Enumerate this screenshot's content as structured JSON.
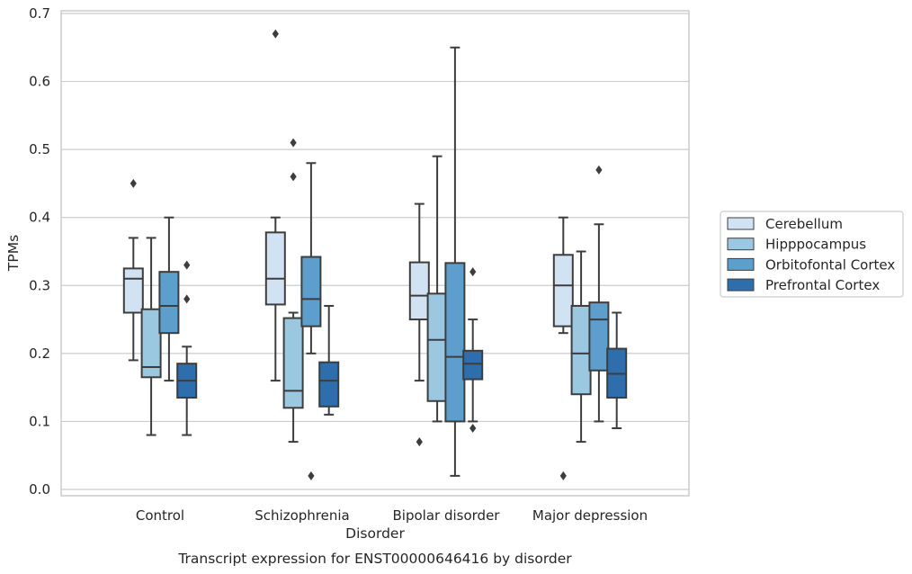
{
  "chart_data": {
    "type": "boxplot",
    "title": "Transcript expression for ENST00000646416 by disorder",
    "xlabel": "Disorder",
    "ylabel": "TPMs",
    "ylim": [
      -0.01,
      0.705
    ],
    "yticks": [
      "0.0",
      "0.1",
      "0.2",
      "0.3",
      "0.4",
      "0.5",
      "0.6",
      "0.7"
    ],
    "categories": [
      "Control",
      "Schizophrenia",
      "Bipolar disorder",
      "Major depression"
    ],
    "grid": "horizontal",
    "legend_position": "right",
    "series": [
      {
        "name": "Cerebellum",
        "color": "#d1e2f2",
        "boxes": [
          {
            "whisker_low": 0.19,
            "q1": 0.26,
            "median": 0.31,
            "q3": 0.325,
            "whisker_high": 0.37,
            "outliers": [
              0.45
            ]
          },
          {
            "whisker_low": 0.16,
            "q1": 0.272,
            "median": 0.31,
            "q3": 0.378,
            "whisker_high": 0.4,
            "outliers": [
              0.67
            ]
          },
          {
            "whisker_low": 0.16,
            "q1": 0.25,
            "median": 0.285,
            "q3": 0.334,
            "whisker_high": 0.42,
            "outliers": [
              0.07
            ]
          },
          {
            "whisker_low": 0.23,
            "q1": 0.24,
            "median": 0.3,
            "q3": 0.345,
            "whisker_high": 0.4,
            "outliers": [
              0.02
            ]
          }
        ]
      },
      {
        "name": "Hipppocampus",
        "color": "#9ac8e0",
        "boxes": [
          {
            "whisker_low": 0.08,
            "q1": 0.165,
            "median": 0.18,
            "q3": 0.265,
            "whisker_high": 0.37,
            "outliers": []
          },
          {
            "whisker_low": 0.07,
            "q1": 0.12,
            "median": 0.145,
            "q3": 0.252,
            "whisker_high": 0.26,
            "outliers": [
              0.51,
              0.46
            ]
          },
          {
            "whisker_low": 0.1,
            "q1": 0.13,
            "median": 0.22,
            "q3": 0.288,
            "whisker_high": 0.49,
            "outliers": []
          },
          {
            "whisker_low": 0.07,
            "q1": 0.14,
            "median": 0.2,
            "q3": 0.27,
            "whisker_high": 0.35,
            "outliers": []
          }
        ]
      },
      {
        "name": "Orbitofontal Cortex",
        "color": "#5c9fcc",
        "boxes": [
          {
            "whisker_low": 0.16,
            "q1": 0.23,
            "median": 0.27,
            "q3": 0.32,
            "whisker_high": 0.4,
            "outliers": []
          },
          {
            "whisker_low": 0.2,
            "q1": 0.24,
            "median": 0.28,
            "q3": 0.342,
            "whisker_high": 0.48,
            "outliers": [
              0.02
            ]
          },
          {
            "whisker_low": 0.02,
            "q1": 0.1,
            "median": 0.195,
            "q3": 0.333,
            "whisker_high": 0.65,
            "outliers": []
          },
          {
            "whisker_low": 0.1,
            "q1": 0.175,
            "median": 0.25,
            "q3": 0.275,
            "whisker_high": 0.39,
            "outliers": [
              0.47
            ]
          }
        ]
      },
      {
        "name": "Prefrontal Cortex",
        "color": "#2e6ead",
        "boxes": [
          {
            "whisker_low": 0.08,
            "q1": 0.135,
            "median": 0.16,
            "q3": 0.185,
            "whisker_high": 0.21,
            "outliers": [
              0.33,
              0.28
            ]
          },
          {
            "whisker_low": 0.11,
            "q1": 0.122,
            "median": 0.16,
            "q3": 0.187,
            "whisker_high": 0.27,
            "outliers": []
          },
          {
            "whisker_low": 0.1,
            "q1": 0.162,
            "median": 0.185,
            "q3": 0.204,
            "whisker_high": 0.25,
            "outliers": [
              0.32,
              0.09
            ]
          },
          {
            "whisker_low": 0.09,
            "q1": 0.135,
            "median": 0.17,
            "q3": 0.207,
            "whisker_high": 0.26,
            "outliers": []
          }
        ]
      }
    ]
  }
}
